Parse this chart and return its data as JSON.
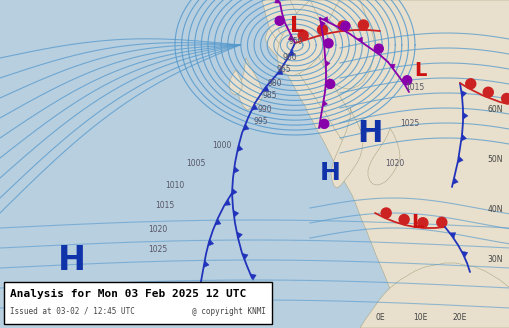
{
  "title_line1": "Analysis for Mon 03 Feb 2025 12 UTC",
  "title_line2": "Issued at 03-02 / 12:45 UTC",
  "copyright": "@ copyright KNMI",
  "bg_ocean": "#b8cfe0",
  "bg_land": "#e8e0cc",
  "isobar_color": "#5599cc",
  "isobar_lw": 0.8,
  "front_cold": "#2233bb",
  "front_warm": "#cc2222",
  "front_occ": "#8800aa",
  "H_color": "#1133aa",
  "L_color": "#cc1111",
  "pres_color": "#555566",
  "figsize": [
    5.1,
    3.28
  ],
  "dpi": 100,
  "text_box_bg": "#ffffff",
  "text_box_border": "#000000"
}
